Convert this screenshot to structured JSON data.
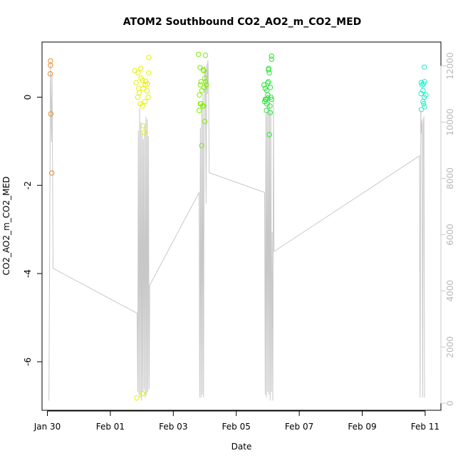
{
  "chart_data": {
    "type": "scatter",
    "title": "ATOM2 Southbound CO2_AO2_m_CO2_MED",
    "xlabel": "Date",
    "ylabel": "CO2_AO2_m_CO2_MED",
    "x_ticks": [
      "Jan 30",
      "Feb 01",
      "Feb 03",
      "Feb 05",
      "Feb 07",
      "Feb 09",
      "Feb 11"
    ],
    "x_tick_days": [
      0,
      2,
      4,
      6,
      8,
      10,
      12
    ],
    "xlim_days": [
      -0.17,
      12.5
    ],
    "y_ticks": [
      "-6",
      "-4",
      "-2",
      "0"
    ],
    "y_tick_values": [
      -6,
      -4,
      -2,
      0
    ],
    "ylim": [
      -7.1,
      1.25
    ],
    "y2_ticks": [
      "0",
      "2000",
      "4000",
      "6000",
      "8000",
      "10000",
      "12000"
    ],
    "y2_tick_values": [
      0,
      2000,
      4000,
      6000,
      8000,
      10000,
      12000
    ],
    "y2lim": [
      -250,
      12850
    ],
    "colors": {
      "axis": "#000000",
      "secondary": "#c8c8c8",
      "secondary_ticks": "#b8b8b8"
    },
    "series": [
      {
        "color": "#f08d24",
        "points": [
          [
            0.1,
            0.82
          ],
          [
            0.1,
            0.72
          ],
          [
            0.09,
            0.53
          ],
          [
            0.11,
            -0.38
          ],
          [
            0.14,
            -1.72
          ]
        ]
      },
      {
        "color": "#e6f000",
        "points": [
          [
            2.78,
            0.6
          ],
          [
            2.88,
            0.55
          ],
          [
            2.97,
            0.43
          ],
          [
            3.02,
            0.38
          ],
          [
            3.11,
            0.28
          ],
          [
            3.22,
            0.55
          ],
          [
            2.82,
            0.33
          ],
          [
            3.05,
            0.2
          ],
          [
            3.17,
            0.14
          ],
          [
            2.92,
            0.1
          ],
          [
            3.12,
            0.36
          ],
          [
            3.18,
            0.3
          ],
          [
            3.2,
            0.0
          ],
          [
            3.1,
            -0.1
          ],
          [
            3.02,
            -0.2
          ],
          [
            2.87,
            0.0
          ],
          [
            2.95,
            -0.15
          ],
          [
            3.22,
            0.9
          ],
          [
            2.97,
            0.65
          ],
          [
            2.9,
            0.2
          ],
          [
            2.84,
            -6.82
          ],
          [
            3.05,
            -0.65
          ],
          [
            3.08,
            -0.8
          ],
          [
            3.02,
            -6.72
          ]
        ]
      },
      {
        "color": "#7dee00",
        "points": [
          [
            4.8,
            0.97
          ],
          [
            5.02,
            0.95
          ],
          [
            4.85,
            0.67
          ],
          [
            4.95,
            0.62
          ],
          [
            4.97,
            0.6
          ],
          [
            4.86,
            0.28
          ],
          [
            4.91,
            0.15
          ],
          [
            4.83,
            0.05
          ],
          [
            4.98,
            0.22
          ],
          [
            5.02,
            0.35
          ],
          [
            5.05,
            0.28
          ],
          [
            4.93,
            -0.2
          ],
          [
            4.88,
            -0.15
          ],
          [
            4.82,
            -0.3
          ],
          [
            5.0,
            -0.55
          ],
          [
            4.9,
            -1.1
          ],
          [
            5.0,
            0.43
          ],
          [
            4.96,
            -0.2
          ],
          [
            4.86,
            -0.15
          ],
          [
            4.88,
            0.35
          ]
        ]
      },
      {
        "color": "#2ee23c",
        "points": [
          [
            7.02,
            0.62
          ],
          [
            7.12,
            0.93
          ],
          [
            7.12,
            0.86
          ],
          [
            7.03,
            0.65
          ],
          [
            7.05,
            0.55
          ],
          [
            6.88,
            0.28
          ],
          [
            6.92,
            0.2
          ],
          [
            7.02,
            0.35
          ],
          [
            7.08,
            0.22
          ],
          [
            6.97,
            0.15
          ],
          [
            7.0,
            0.05
          ],
          [
            7.1,
            0.0
          ],
          [
            7.12,
            -0.05
          ],
          [
            6.95,
            -0.05
          ],
          [
            7.0,
            -0.02
          ],
          [
            6.9,
            -0.1
          ],
          [
            6.97,
            -0.15
          ],
          [
            7.07,
            -0.2
          ],
          [
            6.96,
            -0.3
          ],
          [
            7.08,
            -0.35
          ],
          [
            7.0,
            0.32
          ],
          [
            6.92,
            -0.05
          ],
          [
            7.05,
            -0.85
          ]
        ]
      },
      {
        "color": "#1ef0c8",
        "points": [
          [
            11.97,
            0.68
          ],
          [
            11.88,
            0.33
          ],
          [
            11.95,
            0.3
          ],
          [
            11.98,
            0.35
          ],
          [
            11.93,
            0.15
          ],
          [
            11.97,
            0.0
          ],
          [
            12.02,
            0.05
          ],
          [
            11.87,
            0.08
          ],
          [
            11.93,
            -0.1
          ],
          [
            11.95,
            -0.15
          ],
          [
            11.88,
            -0.28
          ],
          [
            11.98,
            -0.22
          ],
          [
            11.9,
            0.28
          ]
        ]
      }
    ],
    "secondary_line": {
      "axis": "right",
      "x_days": [
        0.05,
        0.1,
        0.13,
        0.15,
        0.18,
        2.85,
        2.87,
        2.89,
        2.91,
        2.93,
        2.95,
        2.97,
        2.99,
        3.01,
        3.03,
        3.05,
        3.07,
        3.09,
        3.11,
        3.13,
        3.15,
        3.17,
        3.19,
        3.21,
        3.23,
        3.25,
        4.82,
        4.84,
        4.86,
        4.88,
        4.9,
        4.92,
        4.94,
        4.96,
        4.98,
        5.0,
        5.02,
        5.04,
        5.06,
        5.08,
        5.1,
        5.12,
        5.14,
        6.9,
        6.92,
        6.94,
        6.96,
        6.98,
        7.0,
        7.02,
        7.04,
        7.06,
        7.08,
        7.1,
        7.12,
        7.14,
        7.16,
        7.18,
        7.2,
        11.82,
        11.84,
        11.86,
        11.88,
        11.9,
        11.92,
        11.94,
        11.96,
        11.98
      ],
      "y": [
        100,
        12150,
        9300,
        11700,
        4800,
        3200,
        400,
        9700,
        300,
        10500,
        200,
        10000,
        100,
        9600,
        400,
        9400,
        500,
        9900,
        200,
        10200,
        300,
        10100,
        400,
        9500,
        500,
        4200,
        7500,
        200,
        9800,
        200,
        10500,
        300,
        11000,
        200,
        9600,
        12000,
        11800,
        7100,
        12100,
        11000,
        12200,
        11500,
        8200,
        7500,
        300,
        10300,
        200,
        10800,
        400,
        10500,
        300,
        10900,
        100,
        10400,
        400,
        6100,
        100,
        10800,
        5400,
        8800,
        200,
        10400,
        9600,
        10100,
        200,
        9900,
        10200,
        200
      ]
    }
  }
}
